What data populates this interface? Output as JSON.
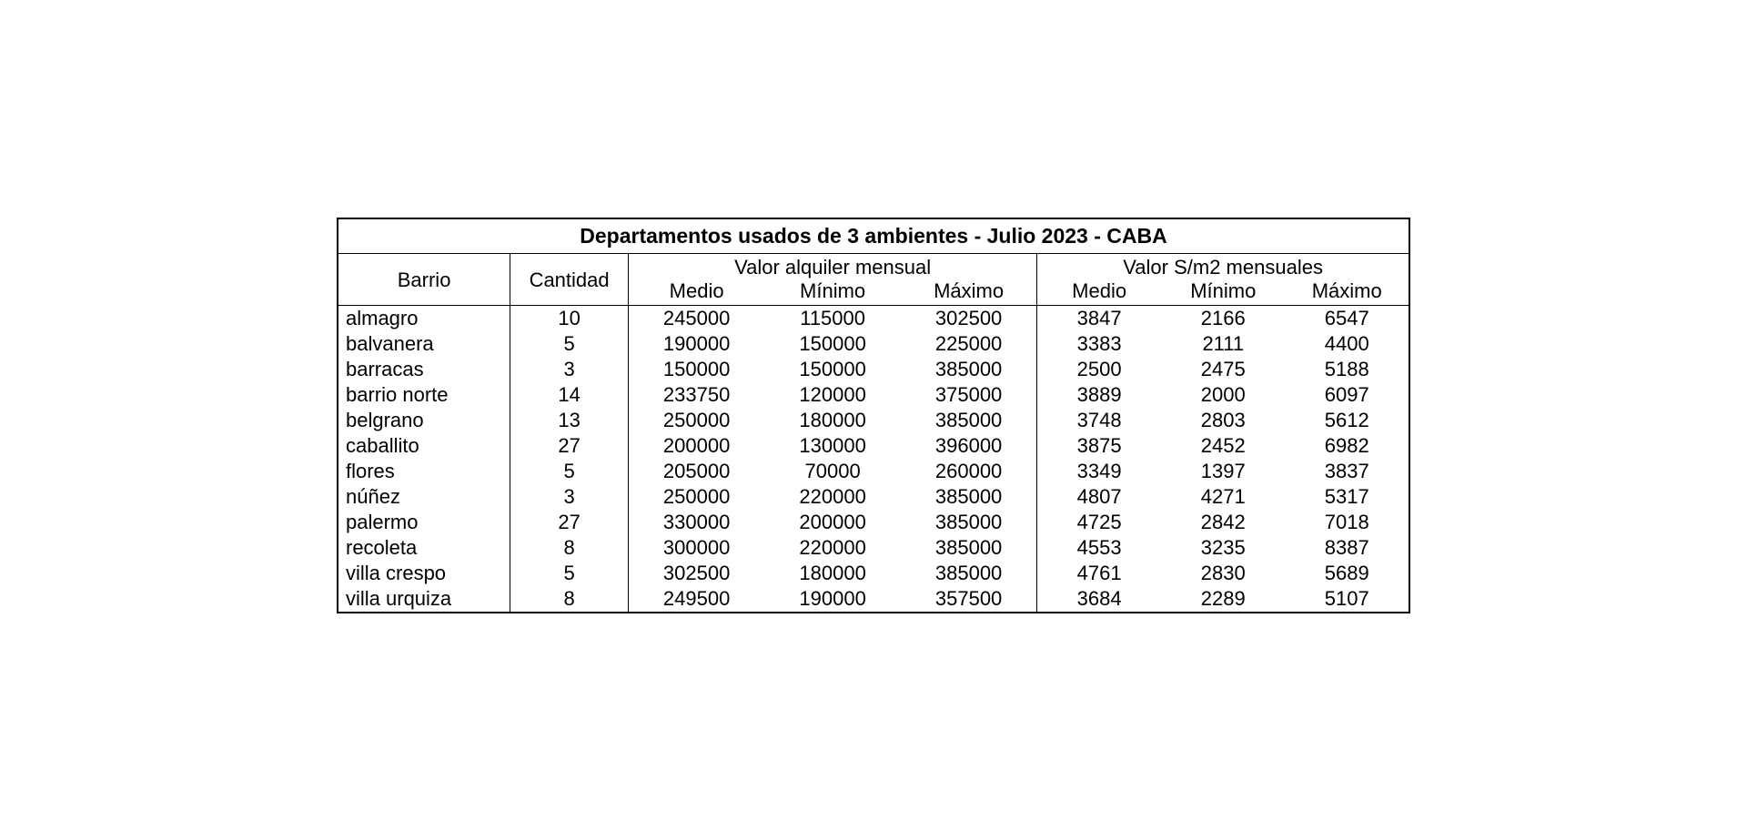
{
  "table": {
    "type": "table",
    "title": "Departamentos usados de 3 ambientes - Julio 2023 - CABA",
    "background_color": "#ffffff",
    "border_color": "#000000",
    "text_color": "#000000",
    "title_fontsize": 23,
    "header_fontsize": 22,
    "data_fontsize": 22,
    "columns": {
      "barrio": "Barrio",
      "cantidad": "Cantidad",
      "group_alquiler": "Valor alquiler mensual",
      "group_m2": "Valor S/m2 mensuales",
      "medio": "Medio",
      "minimo": "Mínimo",
      "maximo": "Máximo"
    },
    "column_widths": {
      "barrio": 190,
      "cantidad": 130,
      "alquiler_sub": 150,
      "m2_sub": 136
    },
    "rows": [
      {
        "barrio": "almagro",
        "cantidad": "10",
        "alq_medio": "245000",
        "alq_min": "115000",
        "alq_max": "302500",
        "m2_medio": "3847",
        "m2_min": "2166",
        "m2_max": "6547"
      },
      {
        "barrio": "balvanera",
        "cantidad": "5",
        "alq_medio": "190000",
        "alq_min": "150000",
        "alq_max": "225000",
        "m2_medio": "3383",
        "m2_min": "2111",
        "m2_max": "4400"
      },
      {
        "barrio": "barracas",
        "cantidad": "3",
        "alq_medio": "150000",
        "alq_min": "150000",
        "alq_max": "385000",
        "m2_medio": "2500",
        "m2_min": "2475",
        "m2_max": "5188"
      },
      {
        "barrio": "barrio norte",
        "cantidad": "14",
        "alq_medio": "233750",
        "alq_min": "120000",
        "alq_max": "375000",
        "m2_medio": "3889",
        "m2_min": "2000",
        "m2_max": "6097"
      },
      {
        "barrio": "belgrano",
        "cantidad": "13",
        "alq_medio": "250000",
        "alq_min": "180000",
        "alq_max": "385000",
        "m2_medio": "3748",
        "m2_min": "2803",
        "m2_max": "5612"
      },
      {
        "barrio": "caballito",
        "cantidad": "27",
        "alq_medio": "200000",
        "alq_min": "130000",
        "alq_max": "396000",
        "m2_medio": "3875",
        "m2_min": "2452",
        "m2_max": "6982"
      },
      {
        "barrio": "flores",
        "cantidad": "5",
        "alq_medio": "205000",
        "alq_min": "70000",
        "alq_max": "260000",
        "m2_medio": "3349",
        "m2_min": "1397",
        "m2_max": "3837"
      },
      {
        "barrio": "núñez",
        "cantidad": "3",
        "alq_medio": "250000",
        "alq_min": "220000",
        "alq_max": "385000",
        "m2_medio": "4807",
        "m2_min": "4271",
        "m2_max": "5317"
      },
      {
        "barrio": "palermo",
        "cantidad": "27",
        "alq_medio": "330000",
        "alq_min": "200000",
        "alq_max": "385000",
        "m2_medio": "4725",
        "m2_min": "2842",
        "m2_max": "7018"
      },
      {
        "barrio": "recoleta",
        "cantidad": "8",
        "alq_medio": "300000",
        "alq_min": "220000",
        "alq_max": "385000",
        "m2_medio": "4553",
        "m2_min": "3235",
        "m2_max": "8387"
      },
      {
        "barrio": "villa crespo",
        "cantidad": "5",
        "alq_medio": "302500",
        "alq_min": "180000",
        "alq_max": "385000",
        "m2_medio": "4761",
        "m2_min": "2830",
        "m2_max": "5689"
      },
      {
        "barrio": "villa urquiza",
        "cantidad": "8",
        "alq_medio": "249500",
        "alq_min": "190000",
        "alq_max": "357500",
        "m2_medio": "3684",
        "m2_min": "2289",
        "m2_max": "5107"
      }
    ]
  }
}
